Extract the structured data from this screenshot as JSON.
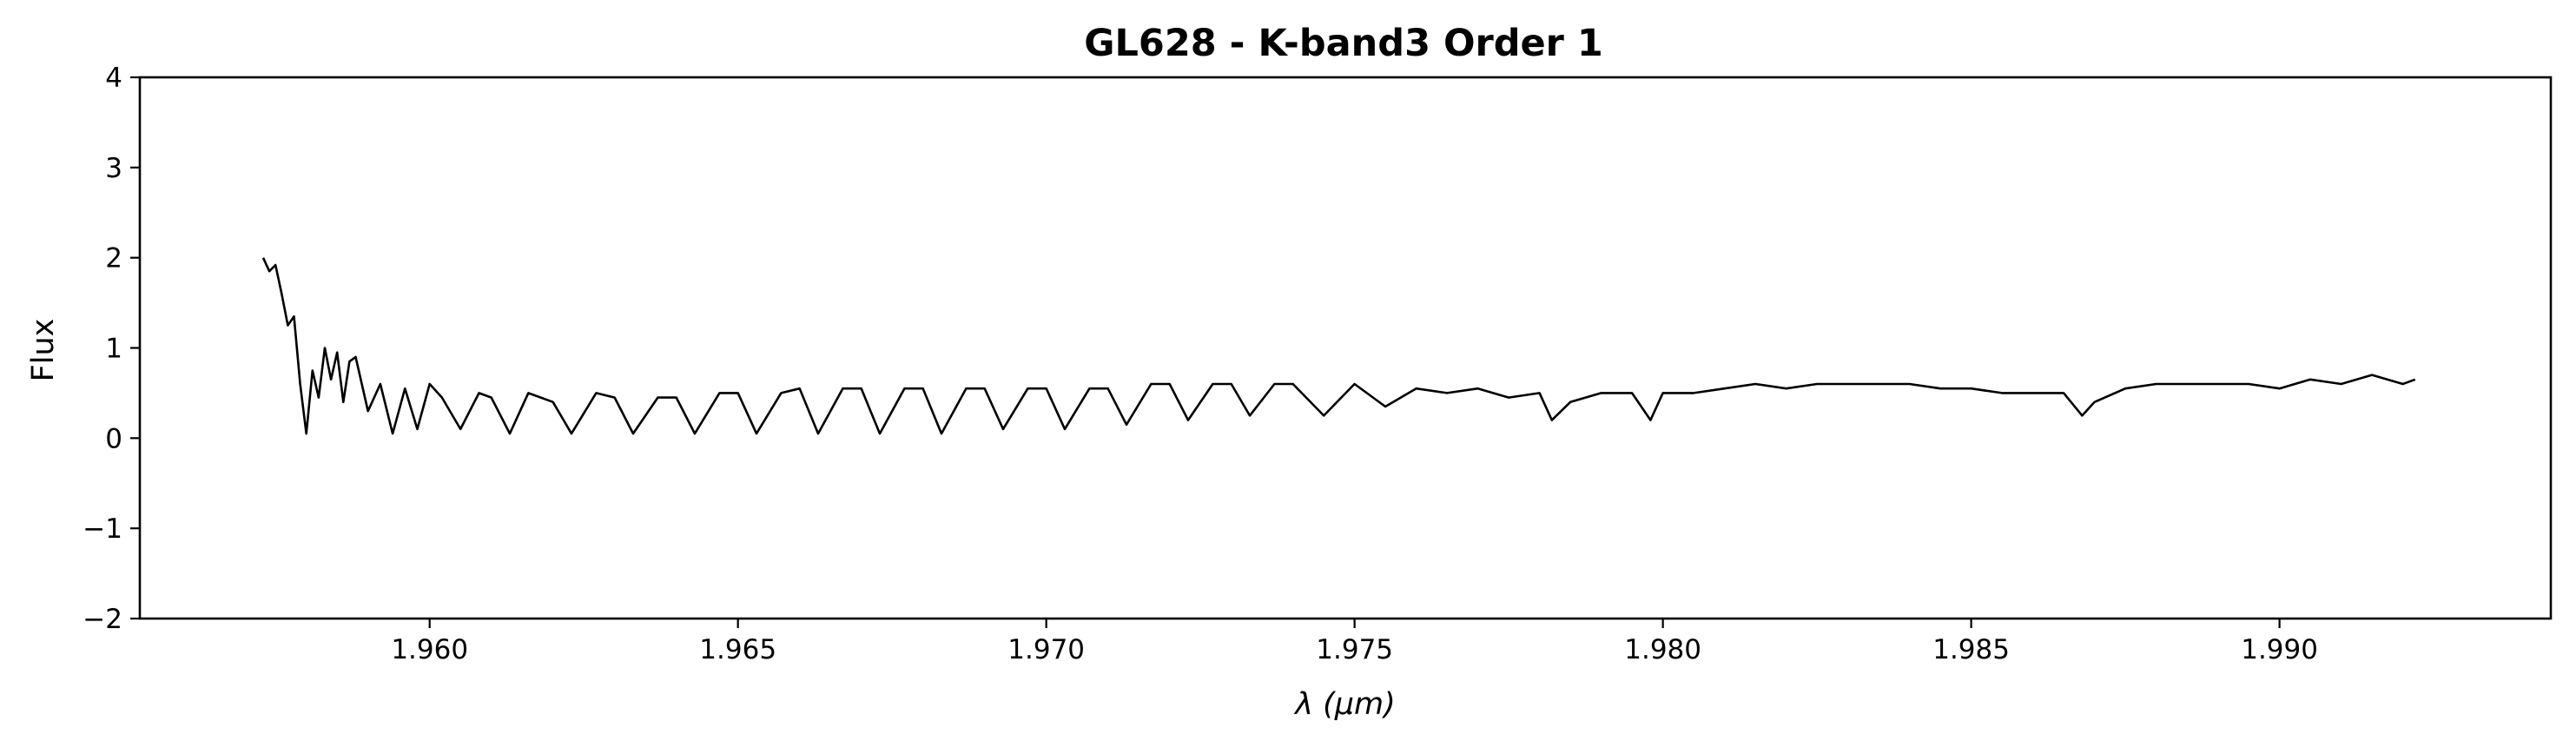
{
  "chart_data": {
    "type": "line",
    "title": "GL628 - K-band3 Order 1",
    "xlabel": "λ (μm)",
    "ylabel": "Flux",
    "xlim": [
      1.9553,
      1.9944
    ],
    "ylim": [
      -2,
      4
    ],
    "x_ticks": [
      1.96,
      1.965,
      1.97,
      1.975,
      1.98,
      1.985,
      1.99
    ],
    "x_tick_labels": [
      "1.960",
      "1.965",
      "1.970",
      "1.975",
      "1.980",
      "1.985",
      "1.990"
    ],
    "y_ticks": [
      -2,
      -1,
      0,
      1,
      2,
      3,
      4
    ],
    "y_tick_labels": [
      "−2",
      "−1",
      "0",
      "1",
      "2",
      "3",
      "4"
    ],
    "grid": false,
    "legend": "none",
    "line_color": "#000000",
    "series": [
      {
        "x": [
          1.9573,
          1.9574,
          1.9575,
          1.9576,
          1.9577,
          1.9578,
          1.9579,
          1.958,
          1.9581,
          1.9582,
          1.9583,
          1.9584,
          1.9585,
          1.9586,
          1.9587,
          1.9588,
          1.959,
          1.9592,
          1.9594,
          1.9596,
          1.9598,
          1.96,
          1.9602,
          1.9605,
          1.9608,
          1.961,
          1.9613,
          1.9616,
          1.962,
          1.9623,
          1.9627,
          1.963,
          1.9633,
          1.9637,
          1.964,
          1.9643,
          1.9647,
          1.965,
          1.9653,
          1.9657,
          1.966,
          1.9663,
          1.9667,
          1.967,
          1.9673,
          1.9677,
          1.968,
          1.9683,
          1.9687,
          1.969,
          1.9693,
          1.9697,
          1.97,
          1.9703,
          1.9707,
          1.971,
          1.9713,
          1.9717,
          1.972,
          1.9723,
          1.9727,
          1.973,
          1.9733,
          1.9737,
          1.974,
          1.9745,
          1.975,
          1.9755,
          1.976,
          1.9765,
          1.977,
          1.9775,
          1.978,
          1.9782,
          1.9785,
          1.979,
          1.9795,
          1.9798,
          1.98,
          1.9805,
          1.981,
          1.9815,
          1.982,
          1.9825,
          1.983,
          1.9835,
          1.984,
          1.9845,
          1.985,
          1.9855,
          1.986,
          1.9865,
          1.9868,
          1.987,
          1.9875,
          1.988,
          1.9885,
          1.989,
          1.9895,
          1.99,
          1.9905,
          1.991,
          1.9915,
          1.992,
          1.9922
        ],
        "y": [
          2.0,
          1.85,
          1.92,
          1.6,
          1.25,
          1.35,
          0.6,
          0.05,
          0.75,
          0.45,
          1.0,
          0.65,
          0.95,
          0.4,
          0.85,
          0.9,
          0.3,
          0.6,
          0.05,
          0.55,
          0.1,
          0.6,
          0.45,
          0.1,
          0.5,
          0.45,
          0.05,
          0.5,
          0.4,
          0.05,
          0.5,
          0.45,
          0.05,
          0.45,
          0.45,
          0.05,
          0.5,
          0.5,
          0.05,
          0.5,
          0.55,
          0.05,
          0.55,
          0.55,
          0.05,
          0.55,
          0.55,
          0.05,
          0.55,
          0.55,
          0.1,
          0.55,
          0.55,
          0.1,
          0.55,
          0.55,
          0.15,
          0.6,
          0.6,
          0.2,
          0.6,
          0.6,
          0.25,
          0.6,
          0.6,
          0.25,
          0.6,
          0.35,
          0.55,
          0.5,
          0.55,
          0.45,
          0.5,
          0.2,
          0.4,
          0.5,
          0.5,
          0.2,
          0.5,
          0.5,
          0.55,
          0.6,
          0.55,
          0.6,
          0.6,
          0.6,
          0.6,
          0.55,
          0.55,
          0.5,
          0.5,
          0.5,
          0.25,
          0.4,
          0.55,
          0.6,
          0.6,
          0.6,
          0.6,
          0.55,
          0.65,
          0.6,
          0.7,
          0.6,
          0.65
        ]
      }
    ]
  }
}
